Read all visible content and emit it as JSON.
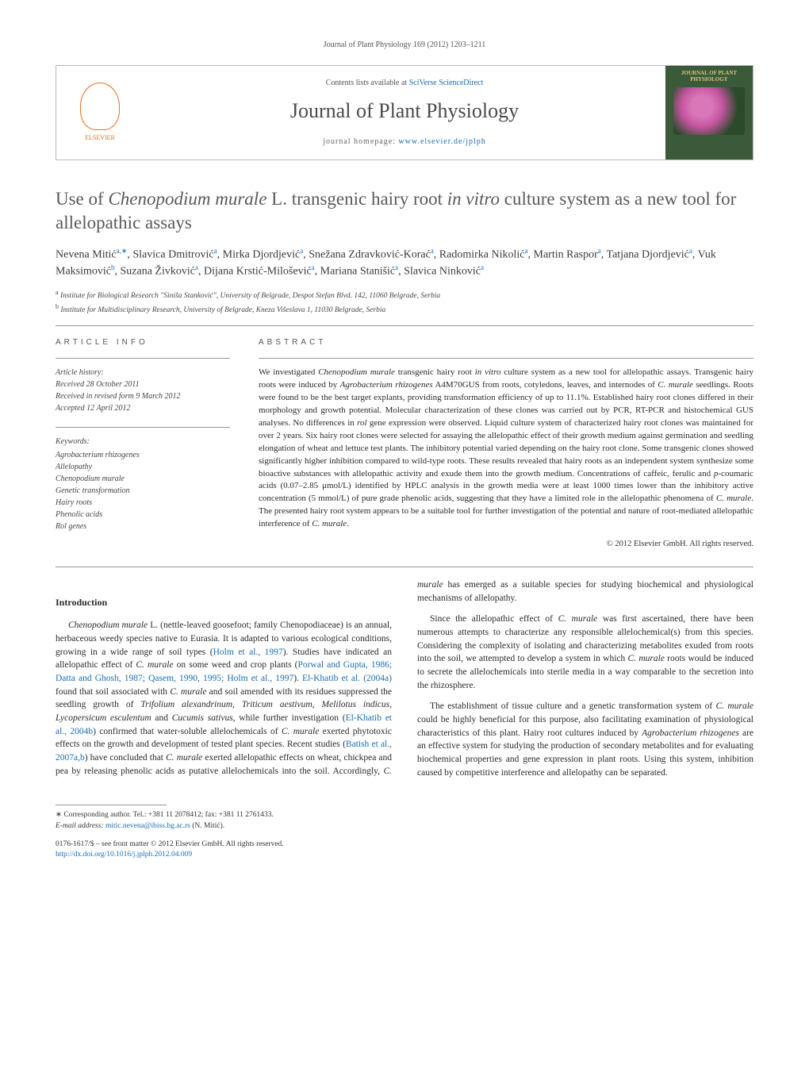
{
  "header": {
    "citation": "Journal of Plant Physiology 169 (2012) 1203–1211",
    "contents_prefix": "Contents lists available at ",
    "contents_link": "SciVerse ScienceDirect",
    "journal_name": "Journal of Plant Physiology",
    "homepage_prefix": "journal homepage: ",
    "homepage_url": "www.elsevier.de/jplph",
    "publisher": "ELSEVIER",
    "cover_title": "JOURNAL OF PLANT PHYSIOLOGY"
  },
  "article": {
    "title_pre": "Use of ",
    "title_species": "Chenopodium murale",
    "title_mid": " L. transgenic hairy root ",
    "title_ital2": "in vitro",
    "title_post": " culture system as a new tool for allelopathic assays"
  },
  "authors": {
    "a1": "Nevena Mitić",
    "a1_sup": "a,∗",
    "a2": "Slavica Dmitrović",
    "a2_sup": "a",
    "a3": "Mirka Djordjević",
    "a3_sup": "a",
    "a4": "Snežana Zdravković-Korać",
    "a4_sup": "a",
    "a5": "Radomirka Nikolić",
    "a5_sup": "a",
    "a6": "Martin Raspor",
    "a6_sup": "a",
    "a7": "Tatjana Djordjević",
    "a7_sup": "a",
    "a8": "Vuk Maksimović",
    "a8_sup": "b",
    "a9": "Suzana Živković",
    "a9_sup": "a",
    "a10": "Dijana Krstić-Milošević",
    "a10_sup": "a",
    "a11": "Mariana Stanišić",
    "a11_sup": "a",
    "a12": "Slavica Ninković",
    "a12_sup": "a"
  },
  "affiliations": {
    "a": "Institute for Biological Research \"Siniša Stanković\", University of Belgrade, Despot Stefan Blvd. 142, 11060 Belgrade, Serbia",
    "b": "Institute for Multidisciplinary Research, University of Belgrade, Kneza Višeslava 1, 11030 Belgrade, Serbia"
  },
  "article_info": {
    "heading": "ARTICLE INFO",
    "history_label": "Article history:",
    "received": "Received 28 October 2011",
    "revised": "Received in revised form 9 March 2012",
    "accepted": "Accepted 12 April 2012",
    "keywords_label": "Keywords:",
    "kw1": "Agrobacterium rhizogenes",
    "kw2": "Allelopathy",
    "kw3": "Chenopodium murale",
    "kw4": "Genetic transformation",
    "kw5": "Hairy roots",
    "kw6": "Phenolic acids",
    "kw7": "Rol genes"
  },
  "abstract": {
    "heading": "ABSTRACT",
    "text_1": "We investigated ",
    "sp1": "Chenopodium murale",
    "text_2": " transgenic hairy root ",
    "sp2": "in vitro",
    "text_3": " culture system as a new tool for allelopathic assays. Transgenic hairy roots were induced by ",
    "sp3": "Agrobacterium rhizogenes",
    "text_4": " A4M70GUS from roots, cotyledons, leaves, and internodes of ",
    "sp4": "C. murale",
    "text_5": " seedlings. Roots were found to be the best target explants, providing transformation efficiency of up to 11.1%. Established hairy root clones differed in their morphology and growth potential. Molecular characterization of these clones was carried out by PCR, RT-PCR and histochemical GUS analyses. No differences in ",
    "sp5": "rol",
    "text_6": " gene expression were observed. Liquid culture system of characterized hairy root clones was maintained for over 2 years. Six hairy root clones were selected for assaying the allelopathic effect of their growth medium against germination and seedling elongation of wheat and lettuce test plants. The inhibitory potential varied depending on the hairy root clone. Some transgenic clones showed significantly higher inhibition compared to wild-type roots. These results revealed that hairy roots as an independent system synthesize some bioactive substances with allelopathic activity and exude them into the growth medium. Concentrations of caffeic, ferulic and ",
    "sp6": "p",
    "text_7": "-coumaric acids (0.07–2.85 μmol/L) identified by HPLC analysis in the growth media were at least 1000 times lower than the inhibitory active concentration (5 mmol/L) of pure grade phenolic acids, suggesting that they have a limited role in the allelopathic phenomena of ",
    "sp7": "C. murale",
    "text_8": ". The presented hairy root system appears to be a suitable tool for further investigation of the potential and nature of root-mediated allelopathic interference of ",
    "sp8": "C. murale",
    "text_9": ".",
    "copyright": "© 2012 Elsevier GmbH. All rights reserved."
  },
  "intro": {
    "heading": "Introduction",
    "p1_a": "Chenopodium murale",
    "p1_b": " L. (nettle-leaved goosefoot; family Chenopodiaceae) is an annual, herbaceous weedy species native to Eurasia. It is adapted to various ecological conditions, growing in a wide range of soil types (",
    "p1_c1": "Holm et al., 1997",
    "p1_c": "). Studies have indicated an allelopathic effect of ",
    "p1_d": "C. murale",
    "p1_e": " on some weed and crop plants (",
    "p1_c2": "Porwal and Gupta, 1986; Datta and Ghosh, 1987; Qasem, 1990, 1995; Holm et al., 1997",
    "p1_f": "). ",
    "p1_c3": "El-Khatib et al. (2004a)",
    "p1_g": " found that soil associated with ",
    "p1_h": "C. murale",
    "p1_i": " and soil amended with its residues suppressed the seedling growth of ",
    "p1_j": "Trifolium alexandrinum, Triticum aestivum, Melilotus indicus, Lycopersicum esculentum",
    "p1_k": " and ",
    "p1_l": "Cucumis sativus",
    "p1_m": ", while further investigation (",
    "p1_c4": "El-Khatib et al., 2004b",
    "p1_n": ") confirmed that water-soluble allelochemicals of ",
    "p1_o": "C. murale",
    "p1_p": " exerted phytotoxic effects on the growth and development of tested plant species. Recent studies (",
    "p1_c5": "Batish et al., 2007a,b",
    "p1_q": ") have concluded that ",
    "p1_r": "C. murale",
    "p1_s": " exerted allelopathic effects on wheat, chickpea and pea by releasing phenolic acids as putative allelochemicals into the soil. Accordingly, ",
    "p1_t": "C. murale",
    "p1_u": " has emerged as a suitable species for studying biochemical and physiological mechanisms of allelopathy.",
    "p2_a": "Since the allelopathic effect of ",
    "p2_b": "C. murale",
    "p2_c": " was first ascertained, there have been numerous attempts to characterize any responsible allelochemical(s) from this species. Considering the complexity of isolating and characterizing metabolites exuded from roots into the soil, we attempted to develop a system in which ",
    "p2_d": "C. murale",
    "p2_e": " roots would be induced to secrete the allelochemicals into sterile media in a way comparable to the secretion into the rhizosphere.",
    "p3_a": "The establishment of tissue culture and a genetic transformation system of ",
    "p3_b": "C. murale",
    "p3_c": " could be highly beneficial for this purpose, also facilitating examination of physiological characteristics of this plant. Hairy root cultures induced by ",
    "p3_d": "Agrobacterium rhizogenes",
    "p3_e": " are an effective system for studying the production of secondary metabolites and for evaluating biochemical properties and gene expression in plant roots. Using this system, inhibition caused by competitive interference and allelopathy can be separated."
  },
  "footnotes": {
    "corr": "∗ Corresponding author. Tel.: +381 11 2078412; fax: +381 11 2761433.",
    "email_label": "E-mail address: ",
    "email": "mitic.nevena@ibiss.bg.ac.rs",
    "email_name": " (N. Mitić)."
  },
  "bottom": {
    "issn": "0176-1617/$ – see front matter © 2012 Elsevier GmbH. All rights reserved.",
    "doi": "http://dx.doi.org/10.1016/j.jplph.2012.04.009"
  },
  "colors": {
    "link": "#1a6db3",
    "publisher": "#e9711c",
    "text": "#2a2a2a",
    "rule": "#999999",
    "cover_bg": "#3a5a3a"
  }
}
